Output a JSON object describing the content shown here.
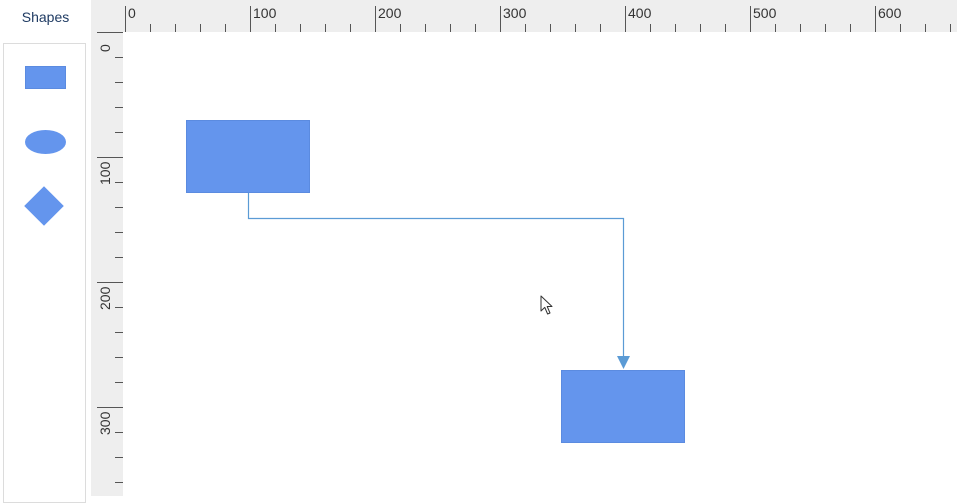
{
  "palette": {
    "title": "Shapes",
    "shapes": [
      {
        "kind": "rectangle",
        "icon": "rectangle-shape-icon"
      },
      {
        "kind": "ellipse",
        "icon": "ellipse-shape-icon"
      },
      {
        "kind": "diamond",
        "icon": "diamond-shape-icon"
      }
    ]
  },
  "ruler": {
    "horizontal_labels": [
      "0",
      "100",
      "200",
      "300",
      "400",
      "500",
      "600"
    ],
    "vertical_labels": [
      "0",
      "100",
      "200",
      "300"
    ]
  },
  "colors": {
    "shape_fill": "#6495ed",
    "connector": "#5b9bd5",
    "ruler_bg": "#eeeeee",
    "palette_title": "#1f3b63"
  }
}
